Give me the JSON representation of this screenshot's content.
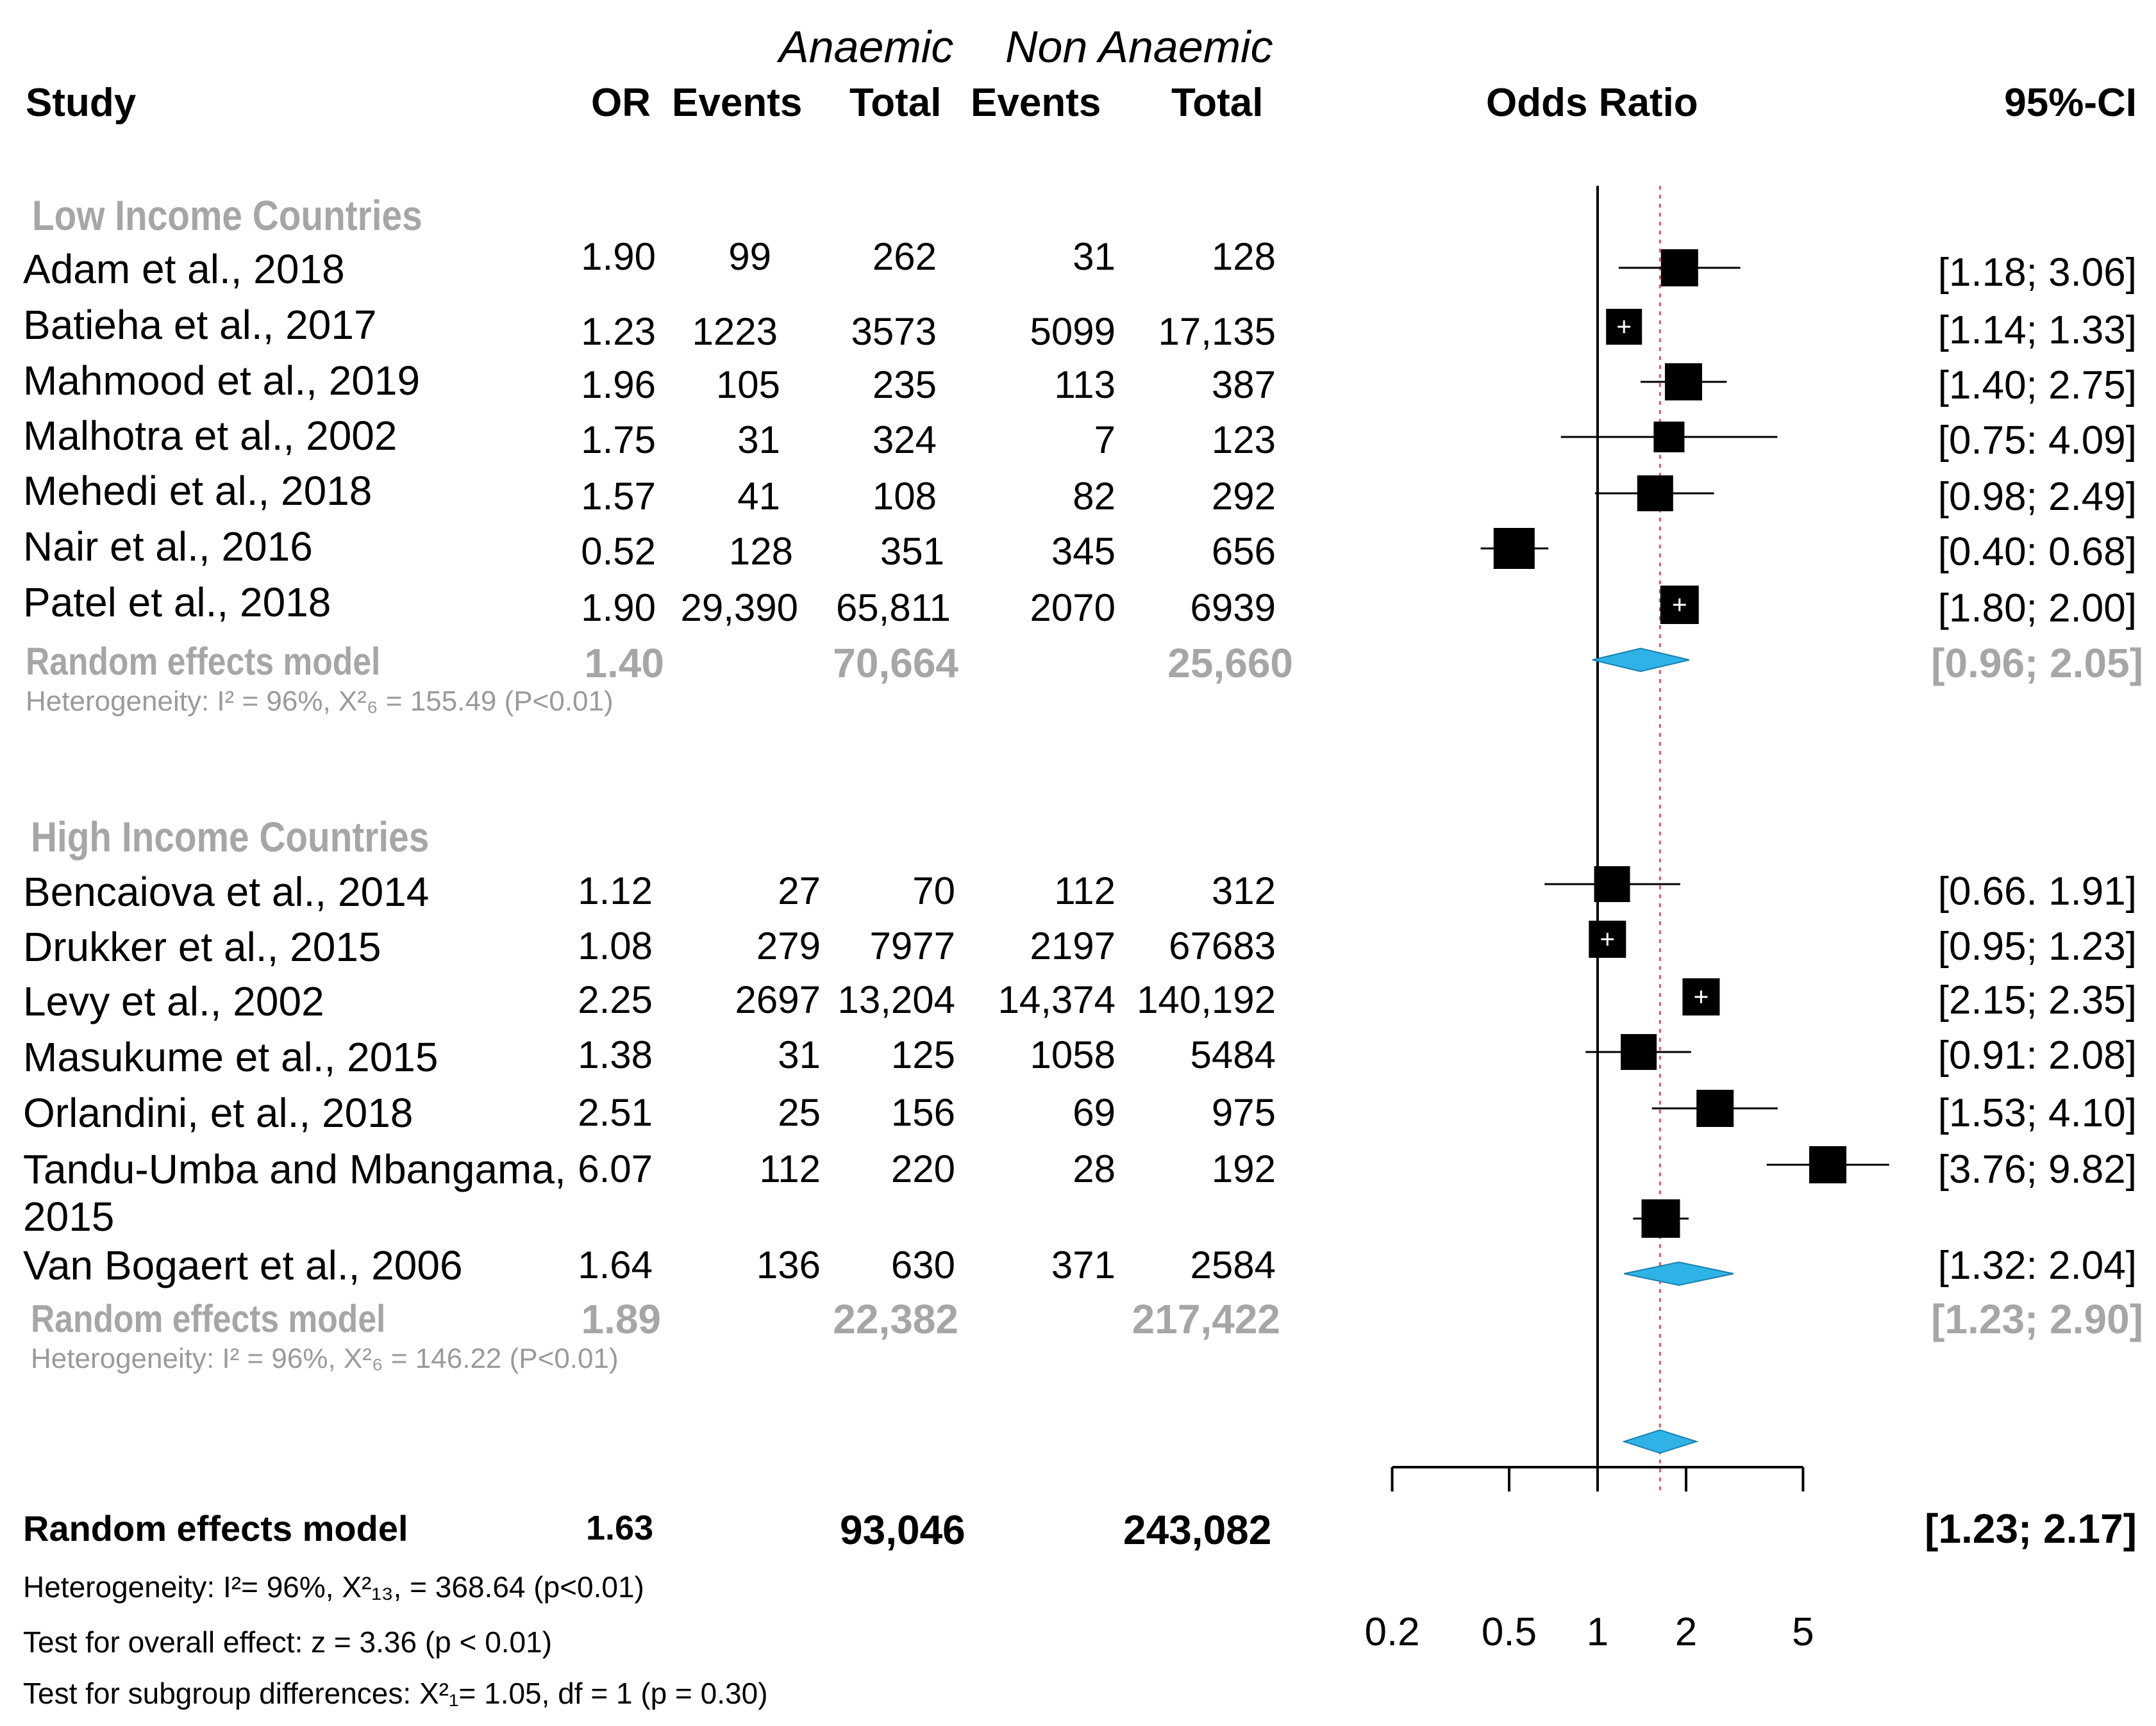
{
  "header": {
    "anaemic": "Anaemic",
    "non_anaemic": "Non Anaemic",
    "col_study": "Study",
    "col_or": "OR",
    "col_events1": "Events",
    "col_total1": "Total",
    "col_events2": "Events",
    "col_total2": "Total",
    "col_odds_ratio": "Odds Ratio",
    "col_ci": "95%-CI"
  },
  "groups": [
    {
      "title": "Low Income Countries",
      "studies": [
        {
          "study": "Adam et al., 2018",
          "or": "1.90",
          "ev1": "99",
          "tot1": "262",
          "ev2": "31",
          "tot2": "128",
          "ci": "[1.18; 3.06]"
        },
        {
          "study": "Batieha et al., 2017",
          "or": "1.23",
          "ev1": "1223",
          "tot1": "3573",
          "ev2": "5099",
          "tot2": "17,135",
          "ci": "[1.14; 1.33]"
        },
        {
          "study": "Mahmood et al., 2019",
          "or": "1.96",
          "ev1": "105",
          "tot1": "235",
          "ev2": "113",
          "tot2": "387",
          "ci": "[1.40; 2.75]"
        },
        {
          "study": "Malhotra et al., 2002",
          "or": "1.75",
          "ev1": "31",
          "tot1": "324",
          "ev2": "7",
          "tot2": "123",
          "ci": "[0.75: 4.09]"
        },
        {
          "study": "Mehedi et al., 2018",
          "or": "1.57",
          "ev1": "41",
          "tot1": "108",
          "ev2": "82",
          "tot2": "292",
          "ci": "[0.98; 2.49]"
        },
        {
          "study": "Nair et al., 2016",
          "or": "0.52",
          "ev1": "128",
          "tot1": "351",
          "ev2": "345",
          "tot2": "656",
          "ci": "[0.40: 0.68]"
        },
        {
          "study": "Patel et al., 2018",
          "or": "1.90",
          "ev1": "29,390",
          "tot1": "65,811",
          "ev2": "2070",
          "tot2": "6939",
          "ci": "[1.80; 2.00]"
        }
      ],
      "model": {
        "label": "Random effects model",
        "or": "1.40",
        "tot1": "70,664",
        "tot2": "25,660",
        "ci": "[0.96; 2.05]"
      },
      "heterogeneity": "Heterogeneity: I² = 96%, X²₆ = 155.49 (P<0.01)"
    },
    {
      "title": "High Income Countries",
      "studies": [
        {
          "study": "Bencaiova et al., 2014",
          "or": "1.12",
          "ev1": "27",
          "tot1": "70",
          "ev2": "112",
          "tot2": "312",
          "ci": "[0.66. 1.91]"
        },
        {
          "study": "Drukker et al., 2015",
          "or": "1.08",
          "ev1": "279",
          "tot1": "7977",
          "ev2": "2197",
          "tot2": "67683",
          "ci": "[0.95; 1.23]"
        },
        {
          "study": "Levy et al., 2002",
          "or": "2.25",
          "ev1": "2697",
          "tot1": "13,204",
          "ev2": "14,374",
          "tot2": "140,192",
          "ci": "[2.15; 2.35]"
        },
        {
          "study": "Masukume et al., 2015",
          "or": "1.38",
          "ev1": "31",
          "tot1": "125",
          "ev2": "1058",
          "tot2": "5484",
          "ci": "[0.91: 2.08]"
        },
        {
          "study": "Orlandini, et al., 2018",
          "or": "2.51",
          "ev1": "25",
          "tot1": "156",
          "ev2": "69",
          "tot2": "975",
          "ci": "[1.53; 4.10]"
        },
        {
          "study": "Tandu-Umba and Mbangama,",
          "study_line2": "2015",
          "or": "6.07",
          "ev1": "112",
          "tot1": "220",
          "ev2": "28",
          "tot2": "192",
          "ci": "[3.76; 9.82]"
        },
        {
          "study": "Van Bogaert et al., 2006",
          "or": "1.64",
          "ev1": "136",
          "tot1": "630",
          "ev2": "371",
          "tot2": "2584",
          "ci": "[1.32: 2.04]"
        }
      ],
      "model": {
        "label": "Random effects model",
        "or": "1.89",
        "tot1": "22,382",
        "tot2": "217,422",
        "ci": "[1.23; 2.90]"
      },
      "heterogeneity": "Heterogeneity: I² = 96%, X²₆ = 146.22 (P<0.01)"
    }
  ],
  "overall": {
    "label": "Random effects model",
    "or": "1.63",
    "tot1": "93,046",
    "tot2": "243,082",
    "ci": "[1.23; 2.17]",
    "heterogeneity": "Heterogeneity: I²= 96%, X²₁₃, = 368.64 (p<0.01)",
    "test_overall": "Test for overall effect: z = 3.36 (p < 0.01)",
    "test_subgroup": "Test for subgroup differences: X²₁= 1.05, df = 1 (p = 0.30)"
  },
  "chart_data": {
    "type": "forest",
    "title": "Odds Ratio",
    "xlabel": "Odds Ratio",
    "x_scale": "log",
    "xlim": [
      0.2,
      5
    ],
    "x_ticks": [
      "0.2",
      "0.5",
      "1",
      "2",
      "5"
    ],
    "x_tick_values": [
      0.2,
      0.5,
      1,
      2,
      5
    ],
    "null_line": 1,
    "pooled_line": 1.63,
    "series": [
      {
        "name": "Adam et al., 2018",
        "or": 1.9,
        "lo": 1.18,
        "hi": 3.06
      },
      {
        "name": "Batieha et al., 2017",
        "or": 1.23,
        "lo": 1.14,
        "hi": 1.33
      },
      {
        "name": "Mahmood et al., 2019",
        "or": 1.96,
        "lo": 1.4,
        "hi": 2.75
      },
      {
        "name": "Malhotra et al., 2002",
        "or": 1.75,
        "lo": 0.75,
        "hi": 4.09
      },
      {
        "name": "Mehedi et al., 2018",
        "or": 1.57,
        "lo": 0.98,
        "hi": 2.49
      },
      {
        "name": "Nair et al., 2016",
        "or": 0.52,
        "lo": 0.4,
        "hi": 0.68
      },
      {
        "name": "Patel et al., 2018",
        "or": 1.9,
        "lo": 1.8,
        "hi": 2.0
      },
      {
        "name": "Low income random effects model",
        "or": 1.4,
        "lo": 0.96,
        "hi": 2.05,
        "pooled": true
      },
      {
        "name": "Bencaiova et al., 2014",
        "or": 1.12,
        "lo": 0.66,
        "hi": 1.91
      },
      {
        "name": "Drukker et al., 2015",
        "or": 1.08,
        "lo": 0.95,
        "hi": 1.23
      },
      {
        "name": "Levy et al., 2002",
        "or": 2.25,
        "lo": 2.15,
        "hi": 2.35
      },
      {
        "name": "Masukume et al., 2015",
        "or": 1.38,
        "lo": 0.91,
        "hi": 2.08
      },
      {
        "name": "Orlandini, et al., 2018",
        "or": 2.51,
        "lo": 1.53,
        "hi": 4.1
      },
      {
        "name": "Tandu-Umba and Mbangama, 2015",
        "or": 6.07,
        "lo": 3.76,
        "hi": 9.82
      },
      {
        "name": "Van Bogaert et al., 2006",
        "or": 1.64,
        "lo": 1.32,
        "hi": 2.04
      },
      {
        "name": "High income random effects model",
        "or": 1.89,
        "lo": 1.23,
        "hi": 2.9,
        "pooled": true
      },
      {
        "name": "Overall random effects model",
        "or": 1.63,
        "lo": 1.23,
        "hi": 2.17,
        "pooled": true
      }
    ],
    "colors": {
      "square": "#000000",
      "diamond": "#2fb3e6",
      "pooled_line": "#e05a5a",
      "axis": "#000000"
    }
  }
}
